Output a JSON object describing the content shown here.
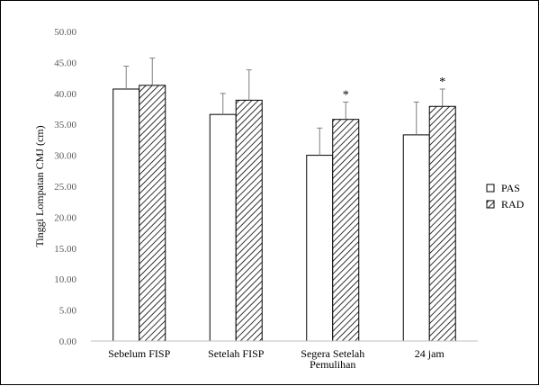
{
  "chart_data": {
    "type": "bar",
    "title": "",
    "xlabel": "",
    "ylabel": "Tinggi Lompatan CMJ (cm)",
    "ylim": [
      0,
      50
    ],
    "ytick_step": 5,
    "ytick_labels": [
      "0.00",
      "5.00",
      "10.00",
      "15.00",
      "20.00",
      "25.00",
      "30.00",
      "35.00",
      "40.00",
      "45.00",
      "50.00"
    ],
    "categories": [
      [
        "Sebelum FISP"
      ],
      [
        "Setelah FISP"
      ],
      [
        "Segera Setelah",
        "Pemulihan"
      ],
      [
        "24 jam"
      ]
    ],
    "series": [
      {
        "name": "PAS",
        "fill": "white",
        "values": [
          40.7,
          36.6,
          30.0,
          33.3
        ],
        "errors": [
          3.7,
          3.4,
          4.4,
          5.3
        ]
      },
      {
        "name": "RAD",
        "fill": "hatched",
        "values": [
          41.3,
          38.9,
          35.8,
          37.9
        ],
        "errors": [
          4.4,
          4.9,
          2.8,
          2.8
        ]
      }
    ],
    "significance_markers": [
      {
        "category_index": 2,
        "series_index": 1,
        "text": "*"
      },
      {
        "category_index": 3,
        "series_index": 1,
        "text": "*"
      }
    ],
    "grid": false,
    "legend_position": "right",
    "colors": {
      "bar_stroke": "#000000",
      "bar_fill": "#ffffff",
      "hatch": "#000000",
      "axis": "#bfbfbf"
    }
  }
}
